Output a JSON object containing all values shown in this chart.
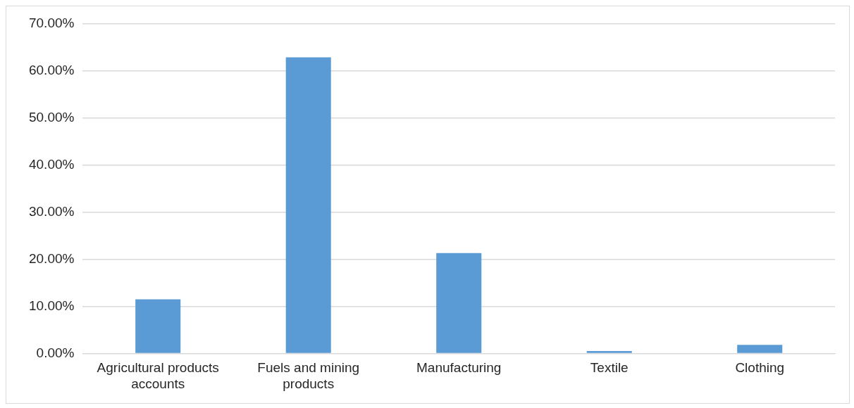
{
  "chart_data": {
    "type": "bar",
    "categories": [
      "Agricultural products accounts",
      "Fuels and mining products",
      "Manufacturing",
      "Textile",
      "Clothing"
    ],
    "values": [
      11.5,
      62.9,
      21.3,
      0.5,
      1.8
    ],
    "color": "#5b9bd5",
    "ylim": [
      0,
      70
    ],
    "yticks": [
      {
        "value": 0,
        "label": "0.00%"
      },
      {
        "value": 10,
        "label": "10.00%"
      },
      {
        "value": 20,
        "label": "20.00%"
      },
      {
        "value": 30,
        "label": "30.00%"
      },
      {
        "value": 40,
        "label": "40.00%"
      },
      {
        "value": 50,
        "label": "50.00%"
      },
      {
        "value": 60,
        "label": "60.00%"
      },
      {
        "value": 70,
        "label": "70.00%"
      }
    ],
    "grid": "y",
    "legend": false
  }
}
